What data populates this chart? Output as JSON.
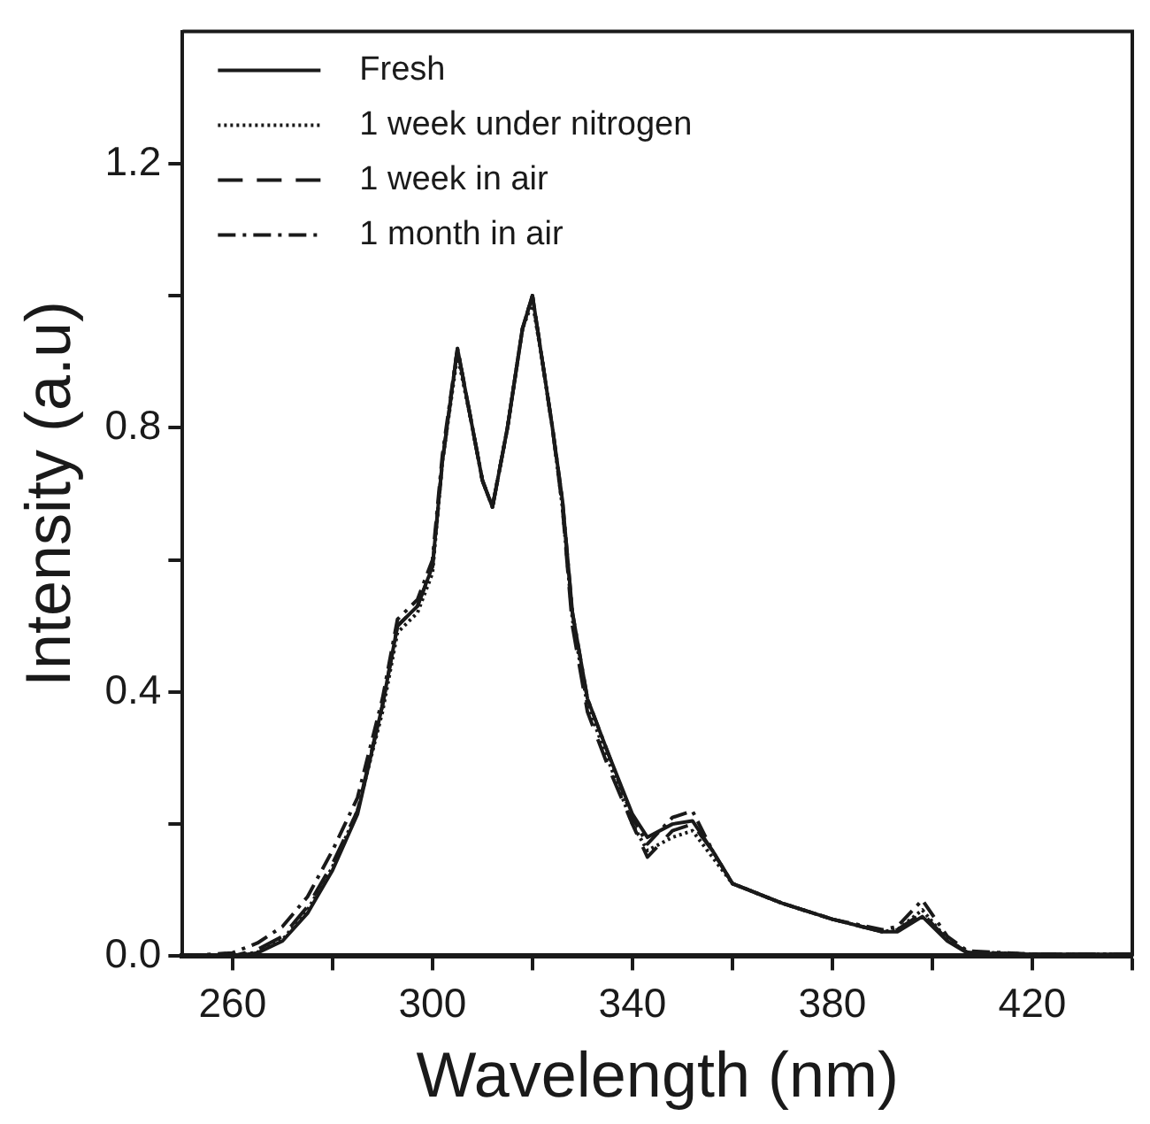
{
  "chart_data": {
    "type": "line",
    "xlabel": "Wavelength (nm)",
    "ylabel": "Intensity (a.u)",
    "xlim": [
      250,
      440
    ],
    "ylim": [
      0,
      1.4
    ],
    "xticks": [
      260,
      {
        "value": 280,
        "label": null
      },
      300,
      {
        "value": 320,
        "label": null
      },
      340,
      {
        "value": 360,
        "label": null
      },
      380,
      {
        "value": 400,
        "label": null
      },
      420,
      {
        "value": 440,
        "label": null
      }
    ],
    "yticks": [
      {
        "value": 0,
        "label": "0.0"
      },
      {
        "value": 0.2,
        "label": null
      },
      0.4,
      {
        "value": 0.6,
        "label": null
      },
      0.8,
      {
        "value": 1.0,
        "label": null
      },
      1.2
    ],
    "x": [
      250,
      260,
      265,
      270,
      275,
      280,
      285,
      290,
      293,
      297,
      300,
      302,
      305,
      308,
      310,
      312,
      315,
      318,
      320,
      322,
      324,
      326,
      328,
      331,
      335,
      340,
      343,
      348,
      352,
      356,
      360,
      370,
      380,
      390,
      393,
      398,
      403,
      407,
      420,
      440
    ],
    "series": [
      {
        "name": "Fresh",
        "color": "#1a1a1a",
        "line_style": "solid",
        "values": [
          0,
          0,
          0.005,
          0.023,
          0.065,
          0.13,
          0.215,
          0.38,
          0.5,
          0.53,
          0.59,
          0.75,
          0.92,
          0.8,
          0.72,
          0.68,
          0.8,
          0.95,
          1.0,
          0.9,
          0.8,
          0.69,
          0.52,
          0.39,
          0.31,
          0.215,
          0.18,
          0.2,
          0.205,
          0.16,
          0.11,
          0.08,
          0.056,
          0.037,
          0.037,
          0.06,
          0.023,
          0.005,
          0.003,
          0.003
        ]
      },
      {
        "name": "1 week under nitrogen",
        "color": "#1a1a1a",
        "line_style": "dotted",
        "values": [
          0,
          0,
          0.006,
          0.025,
          0.07,
          0.135,
          0.22,
          0.37,
          0.49,
          0.52,
          0.58,
          0.75,
          0.91,
          0.8,
          0.72,
          0.68,
          0.8,
          0.95,
          0.99,
          0.9,
          0.8,
          0.68,
          0.51,
          0.38,
          0.3,
          0.2,
          0.16,
          0.18,
          0.19,
          0.15,
          0.11,
          0.08,
          0.056,
          0.037,
          0.04,
          0.07,
          0.025,
          0.006,
          0.003,
          0.003
        ]
      },
      {
        "name": "1 week in air",
        "color": "#1a1a1a",
        "line_style": "dashed",
        "values": [
          0,
          0,
          0.01,
          0.03,
          0.075,
          0.14,
          0.22,
          0.38,
          0.5,
          0.53,
          0.59,
          0.75,
          0.92,
          0.8,
          0.72,
          0.68,
          0.8,
          0.95,
          1.0,
          0.9,
          0.8,
          0.68,
          0.5,
          0.37,
          0.29,
          0.2,
          0.15,
          0.19,
          0.2,
          0.16,
          0.11,
          0.08,
          0.056,
          0.037,
          0.04,
          0.065,
          0.025,
          0.006,
          0.003,
          0.003
        ]
      },
      {
        "name": "1 month in air",
        "color": "#1a1a1a",
        "line_style": "dashdot",
        "values": [
          0,
          0.005,
          0.02,
          0.045,
          0.09,
          0.16,
          0.24,
          0.39,
          0.51,
          0.54,
          0.6,
          0.76,
          0.92,
          0.8,
          0.72,
          0.68,
          0.8,
          0.95,
          1.0,
          0.9,
          0.8,
          0.69,
          0.52,
          0.39,
          0.31,
          0.21,
          0.17,
          0.21,
          0.22,
          0.16,
          0.11,
          0.08,
          0.056,
          0.04,
          0.045,
          0.085,
          0.03,
          0.008,
          0.003,
          0.003
        ]
      }
    ],
    "legend": "top left",
    "grid": false,
    "marker": "none"
  }
}
